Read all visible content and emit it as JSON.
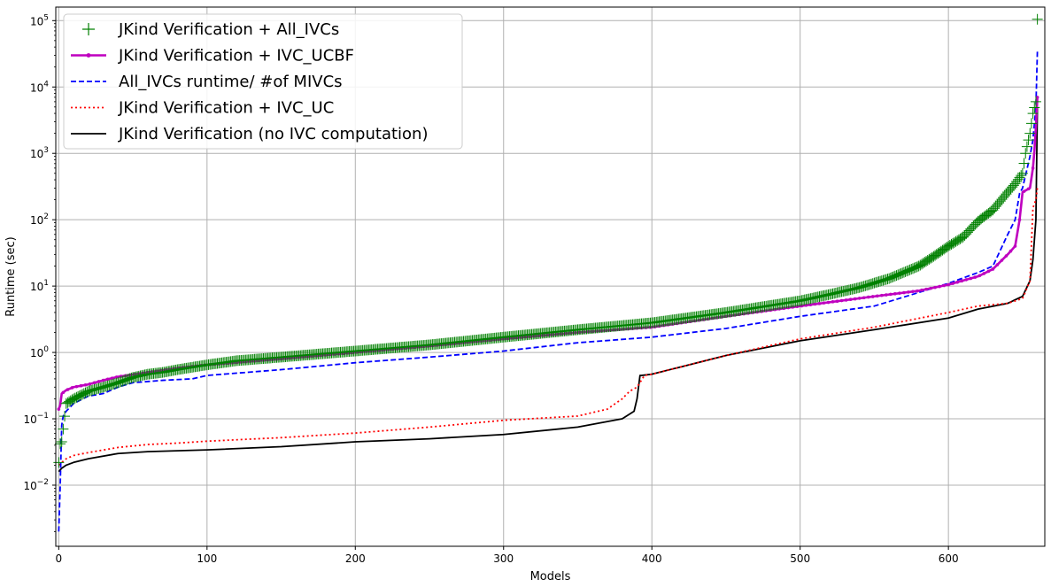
{
  "chart_data": {
    "type": "line",
    "title": "",
    "xlabel": "Models",
    "ylabel": "Runtime (sec)",
    "xlim": [
      -2,
      665
    ],
    "ylim": [
      0.0012,
      160000
    ],
    "yscale": "log",
    "grid": true,
    "legend_position": "top-left",
    "x_ticks": [
      0,
      100,
      200,
      300,
      400,
      500,
      600
    ],
    "x_tick_labels": [
      "0",
      "100",
      "200",
      "300",
      "400",
      "500",
      "600"
    ],
    "y_ticks": [
      0.01,
      0.1,
      1,
      10,
      100,
      1000,
      10000,
      100000
    ],
    "y_tick_labels": [
      {
        "base": "10",
        "exp": "−2"
      },
      {
        "base": "10",
        "exp": "−1"
      },
      {
        "base": "10",
        "exp": "0"
      },
      {
        "base": "10",
        "exp": "1"
      },
      {
        "base": "10",
        "exp": "2"
      },
      {
        "base": "10",
        "exp": "3"
      },
      {
        "base": "10",
        "exp": "4"
      },
      {
        "base": "10",
        "exp": "5"
      }
    ],
    "series": [
      {
        "name": "JKind Verification + All_IVCs",
        "color": "#008000",
        "style": "plus-markers",
        "x": [
          0,
          1,
          2,
          5,
          10,
          20,
          30,
          40,
          50,
          60,
          70,
          80,
          100,
          120,
          150,
          200,
          250,
          300,
          350,
          400,
          450,
          500,
          520,
          540,
          560,
          580,
          590,
          600,
          610,
          620,
          630,
          640,
          645,
          650,
          652,
          655,
          657,
          659,
          660
        ],
        "y": [
          0.022,
          0.042,
          0.045,
          0.17,
          0.2,
          0.26,
          0.3,
          0.35,
          0.42,
          0.47,
          0.5,
          0.55,
          0.65,
          0.75,
          0.85,
          1.05,
          1.3,
          1.7,
          2.2,
          2.8,
          4.0,
          6.0,
          7.5,
          9.5,
          13,
          20,
          28,
          40,
          55,
          95,
          140,
          260,
          350,
          500,
          1000,
          2000,
          4000,
          6000,
          105000
        ]
      },
      {
        "name": "JKind Verification + IVC_UCBF",
        "color": "#bf00bf",
        "style": "line-dot",
        "x": [
          0,
          1,
          2,
          5,
          10,
          20,
          30,
          40,
          60,
          80,
          100,
          150,
          200,
          250,
          300,
          350,
          400,
          450,
          500,
          550,
          580,
          600,
          620,
          630,
          640,
          645,
          648,
          650,
          655,
          657,
          658,
          659,
          660
        ],
        "y": [
          0.14,
          0.16,
          0.24,
          0.27,
          0.3,
          0.33,
          0.38,
          0.43,
          0.5,
          0.58,
          0.65,
          0.8,
          1.0,
          1.25,
          1.6,
          2.0,
          2.4,
          3.5,
          5.0,
          7.0,
          8.5,
          10.5,
          14,
          18,
          30,
          40,
          100,
          260,
          300,
          600,
          1100,
          2500,
          7000
        ]
      },
      {
        "name": "All_IVCs runtime/ #of MIVCs",
        "color": "#0000ff",
        "style": "dashed",
        "x": [
          0,
          1,
          2,
          3,
          5,
          10,
          20,
          30,
          40,
          50,
          70,
          90,
          100,
          150,
          200,
          250,
          300,
          350,
          400,
          450,
          500,
          550,
          580,
          600,
          620,
          630,
          640,
          645,
          648,
          650,
          655,
          657,
          659,
          660
        ],
        "y": [
          0.002,
          0.01,
          0.08,
          0.11,
          0.13,
          0.17,
          0.22,
          0.24,
          0.3,
          0.35,
          0.38,
          0.4,
          0.45,
          0.55,
          0.7,
          0.85,
          1.05,
          1.4,
          1.7,
          2.3,
          3.5,
          5.0,
          8.0,
          11,
          16,
          20,
          60,
          100,
          250,
          300,
          900,
          1600,
          5000,
          35000
        ]
      },
      {
        "name": "JKind Verification + IVC_UC",
        "color": "#ff0000",
        "style": "dotted",
        "x": [
          0,
          1,
          2,
          5,
          10,
          20,
          40,
          60,
          80,
          100,
          150,
          200,
          250,
          300,
          350,
          370,
          380,
          385,
          390,
          395,
          400,
          450,
          500,
          550,
          600,
          620,
          640,
          650,
          655,
          657,
          659,
          660
        ],
        "y": [
          0.02,
          0.021,
          0.022,
          0.025,
          0.028,
          0.031,
          0.037,
          0.041,
          0.043,
          0.046,
          0.052,
          0.061,
          0.075,
          0.095,
          0.11,
          0.14,
          0.2,
          0.26,
          0.3,
          0.45,
          0.47,
          0.9,
          1.6,
          2.4,
          4.0,
          5.0,
          5.5,
          6.5,
          12,
          150,
          200,
          300
        ]
      },
      {
        "name": "JKind Verification (no IVC computation)",
        "color": "#000000",
        "style": "solid",
        "x": [
          0,
          1,
          2,
          5,
          10,
          20,
          40,
          60,
          80,
          100,
          150,
          200,
          250,
          300,
          350,
          380,
          388,
          390,
          391,
          392,
          393,
          400,
          450,
          500,
          550,
          600,
          620,
          640,
          650,
          655,
          657,
          659,
          660
        ],
        "y": [
          0.016,
          0.017,
          0.018,
          0.02,
          0.022,
          0.025,
          0.03,
          0.032,
          0.033,
          0.034,
          0.038,
          0.045,
          0.05,
          0.058,
          0.075,
          0.1,
          0.13,
          0.2,
          0.3,
          0.45,
          0.45,
          0.47,
          0.9,
          1.5,
          2.2,
          3.3,
          4.5,
          5.5,
          7.0,
          12,
          25,
          100,
          5000
        ]
      }
    ]
  }
}
